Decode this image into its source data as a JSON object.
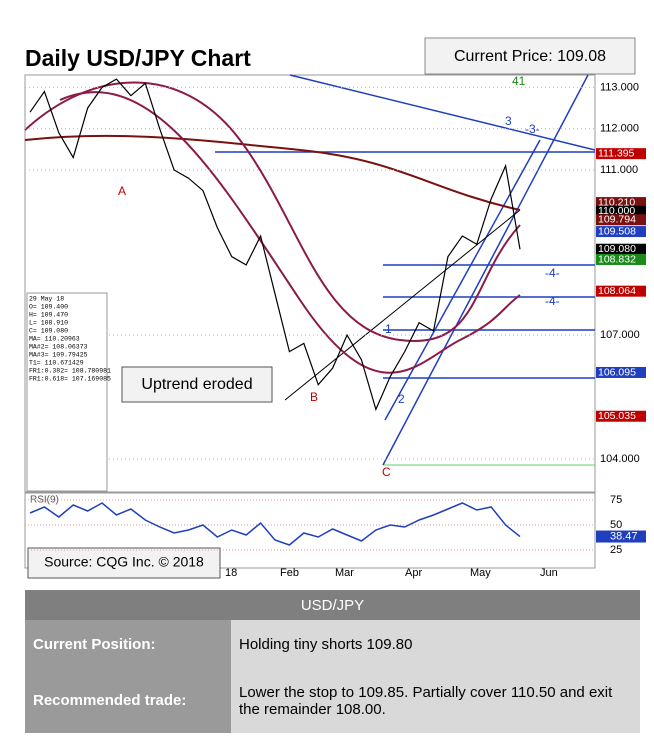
{
  "chart_data": {
    "type": "line",
    "title": "Daily USD/JPY Chart",
    "current_price": "Current Price: 109.08",
    "values": [
      112.4,
      112.9,
      111.9,
      111.3,
      112.5,
      113.0,
      113.2,
      112.8,
      113.1,
      112.0,
      111.0,
      110.8,
      110.5,
      109.6,
      108.9,
      108.7,
      109.4,
      108.0,
      106.6,
      106.8,
      105.8,
      106.2,
      107.0,
      106.4,
      105.2,
      106.0,
      106.6,
      107.3,
      107.1,
      108.9,
      109.4,
      109.2,
      110.3,
      111.1,
      109.08
    ],
    "color": "#000000",
    "ylim": [
      103.2,
      113.3
    ],
    "yticks": [
      {
        "value": 113,
        "label": "113.000"
      },
      {
        "value": 112,
        "label": "112.000"
      },
      {
        "value": 111,
        "label": "111.000"
      },
      {
        "value": 107,
        "label": "107.000"
      },
      {
        "value": 104,
        "label": "104.000"
      }
    ],
    "price_labels": [
      {
        "value": 111.395,
        "label": "111.395",
        "color": "#c00000"
      },
      {
        "value": 110.21,
        "label": "110.210",
        "color": "#7b1010"
      },
      {
        "value": 110.0,
        "label": "110.000",
        "color": "#000000"
      },
      {
        "value": 109.794,
        "label": "109.794",
        "color": "#7b1010"
      },
      {
        "value": 109.508,
        "label": "109.508",
        "color": "#1f3fbf"
      },
      {
        "value": 109.08,
        "label": "109.080",
        "color": "#000000"
      },
      {
        "value": 108.832,
        "label": "108.832",
        "color": "#1a8a1a"
      },
      {
        "value": 108.064,
        "label": "108.064",
        "color": "#c00000"
      },
      {
        "value": 106.095,
        "label": "106.095",
        "color": "#1f3fbf"
      },
      {
        "value": 105.035,
        "label": "105.035",
        "color": "#c00000"
      }
    ],
    "xlabels": [
      "18",
      "Feb",
      "Mar",
      "Apr",
      "May",
      "Jun"
    ],
    "annotations": [
      "41",
      "-3-",
      "-4-",
      "-4-",
      "A",
      "B",
      "C",
      "1",
      "2",
      "3"
    ],
    "callout": "Uptrend eroded",
    "source": "Source: CQG Inc. © 2018",
    "stats": [
      "29 May 18",
      "O=      109.400",
      "H=      109.470",
      "L=      108.910",
      "C=      109.080",
      "MA=     110.20963",
      "MA#2=   108.06373",
      "MA#3=   109.79425",
      "T1=     110.671429",
      "FR1:0.382= 108.780981",
      "FR1:0.618= 107.169085"
    ],
    "rsi": {
      "label": "RSI(9)",
      "values": [
        62,
        68,
        58,
        70,
        64,
        72,
        60,
        66,
        55,
        48,
        42,
        45,
        50,
        38,
        45,
        40,
        52,
        35,
        30,
        42,
        38,
        46,
        40,
        34,
        45,
        50,
        48,
        55,
        60,
        66,
        72,
        65,
        68,
        50,
        38.47
      ],
      "color": "#1f3fbf",
      "ylim": [
        10,
        82
      ],
      "yticks": [
        25,
        50,
        75
      ]
    }
  },
  "table": {
    "header": "USD/JPY",
    "rows": [
      [
        "Current Position:",
        "Holding tiny shorts 109.80"
      ],
      [
        "Recommended trade:",
        "Lower the stop to 109.85. Partially cover 110.50 and exit the remainder 108.00."
      ]
    ]
  }
}
